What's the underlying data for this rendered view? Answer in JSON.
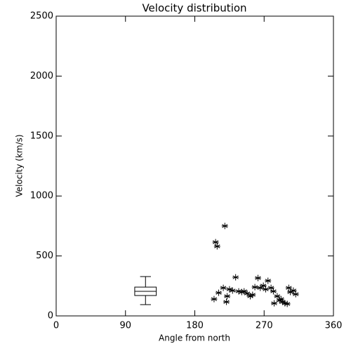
{
  "chart_data": {
    "type": "scatter",
    "title": "Velocity distribution",
    "x_label": "Angle from north",
    "y_label": "Velocity (km/s)",
    "xlim": [
      0,
      360
    ],
    "xticks": [
      0,
      90,
      180,
      270,
      360
    ],
    "ylim": [
      0,
      2500
    ],
    "yticks": [
      0,
      500,
      1000,
      1500,
      2000,
      2500
    ],
    "color": "#000000",
    "marker": "asterisk",
    "x": [
      205,
      207,
      209,
      219,
      211,
      217,
      221,
      222,
      225,
      229,
      233,
      237,
      241,
      244,
      248,
      252,
      255,
      258,
      262,
      265,
      269,
      272,
      275,
      279,
      282,
      283,
      287,
      290,
      292,
      294,
      297,
      300,
      302,
      304,
      308,
      311
    ],
    "values": [
      140,
      615,
      580,
      750,
      193,
      234,
      117,
      164,
      222,
      211,
      322,
      205,
      199,
      205,
      187,
      164,
      176,
      240,
      316,
      234,
      252,
      222,
      293,
      234,
      205,
      105,
      164,
      129,
      140,
      117,
      105,
      100,
      234,
      199,
      211,
      181
    ],
    "boxplot": {
      "position": 116,
      "width": 28,
      "min": 94,
      "q1": 170,
      "median": 205,
      "q3": 240,
      "max": 328
    }
  }
}
